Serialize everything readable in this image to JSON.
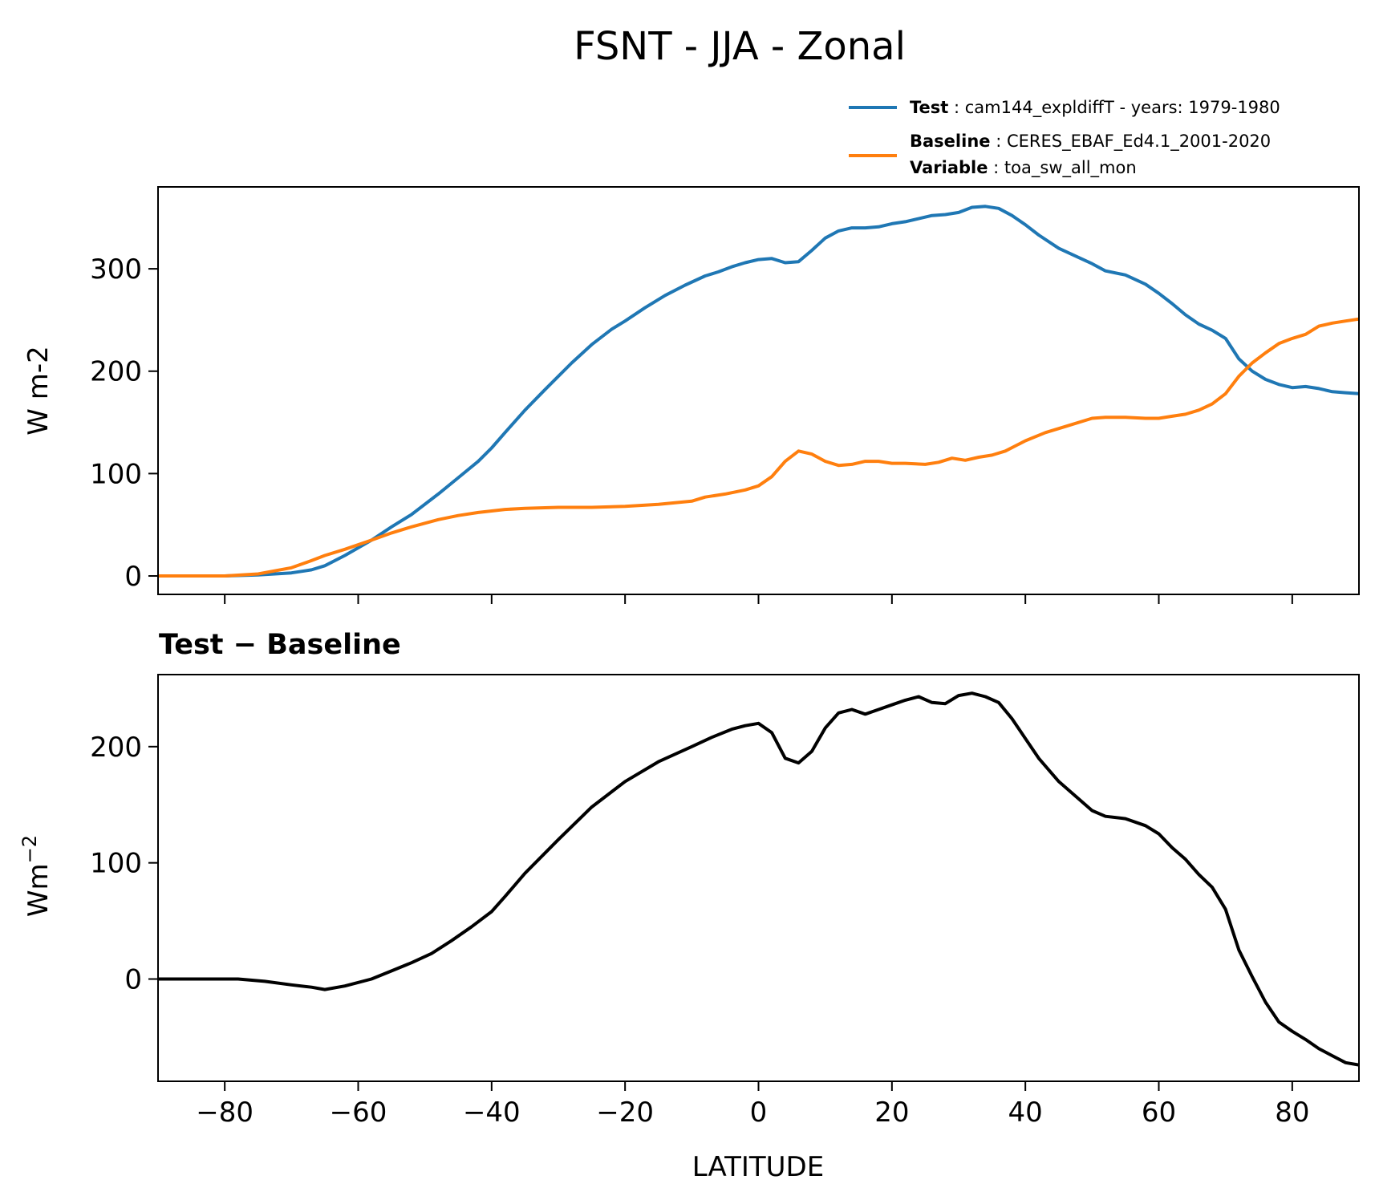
{
  "figure": {
    "title": "FSNT - JJA - Zonal"
  },
  "legend": {
    "test": {
      "key": "Test",
      "sep": " : ",
      "text": "cam144_expldiffT - years: 1979-1980",
      "color": "#1f77b4"
    },
    "baseline": {
      "key": "Baseline",
      "sep": " : ",
      "text": "CERES_EBAF_Ed4.1_2001-2020",
      "color": "#ff7f0e"
    },
    "variable": {
      "key": "Variable",
      "sep": " : ",
      "text": "toa_sw_all_mon"
    }
  },
  "chart_data": [
    {
      "type": "line",
      "panel": "top",
      "title": "",
      "xlabel": "",
      "ylabel": "W m-2",
      "xlim": [
        -90,
        90
      ],
      "ylim": [
        -18,
        380
      ],
      "xticks": [
        -80,
        -60,
        -40,
        -20,
        0,
        20,
        40,
        60,
        80
      ],
      "yticks": [
        0,
        100,
        200,
        300
      ],
      "ytick_labels": [
        "0",
        "100",
        "200",
        "300"
      ],
      "grid": false,
      "legend_position": "above-right",
      "series": [
        {
          "name": "Test",
          "color": "#1f77b4",
          "x": [
            -90,
            -80,
            -75,
            -70,
            -67,
            -65,
            -62,
            -58,
            -55,
            -52,
            -48,
            -45,
            -42,
            -40,
            -38,
            -35,
            -32,
            -28,
            -25,
            -22,
            -20,
            -17,
            -14,
            -11,
            -8,
            -6,
            -4,
            -2,
            0,
            2,
            4,
            6,
            8,
            10,
            12,
            14,
            16,
            18,
            20,
            22,
            24,
            26,
            28,
            30,
            32,
            34,
            36,
            38,
            40,
            42,
            45,
            48,
            50,
            52,
            55,
            58,
            60,
            62,
            64,
            66,
            68,
            70,
            72,
            74,
            76,
            78,
            80,
            82,
            84,
            86,
            88,
            90
          ],
          "y": [
            0,
            0,
            1,
            3,
            6,
            10,
            20,
            35,
            48,
            60,
            80,
            96,
            112,
            125,
            140,
            162,
            182,
            208,
            226,
            241,
            249,
            262,
            274,
            284,
            293,
            297,
            302,
            306,
            309,
            310,
            306,
            307,
            318,
            330,
            337,
            340,
            340,
            341,
            344,
            346,
            349,
            352,
            353,
            355,
            360,
            361,
            359,
            352,
            343,
            333,
            320,
            311,
            305,
            298,
            294,
            285,
            276,
            266,
            255,
            246,
            240,
            232,
            212,
            200,
            192,
            187,
            184,
            185,
            183,
            180,
            179,
            178
          ]
        },
        {
          "name": "Baseline",
          "color": "#ff7f0e",
          "x": [
            -90,
            -80,
            -75,
            -70,
            -67,
            -65,
            -62,
            -58,
            -55,
            -52,
            -48,
            -45,
            -42,
            -38,
            -35,
            -30,
            -25,
            -20,
            -15,
            -10,
            -8,
            -5,
            -2,
            0,
            2,
            4,
            6,
            8,
            10,
            12,
            14,
            16,
            18,
            20,
            22,
            25,
            27,
            29,
            31,
            33,
            35,
            37,
            40,
            43,
            46,
            50,
            52,
            55,
            58,
            60,
            62,
            64,
            66,
            68,
            70,
            72,
            74,
            76,
            78,
            80,
            82,
            84,
            86,
            88,
            90
          ],
          "y": [
            0,
            0,
            2,
            8,
            15,
            20,
            26,
            35,
            42,
            48,
            55,
            59,
            62,
            65,
            66,
            67,
            67,
            68,
            70,
            73,
            77,
            80,
            84,
            88,
            97,
            112,
            122,
            119,
            112,
            108,
            109,
            112,
            112,
            110,
            110,
            109,
            111,
            115,
            113,
            116,
            118,
            122,
            132,
            140,
            146,
            154,
            155,
            155,
            154,
            154,
            156,
            158,
            162,
            168,
            178,
            195,
            208,
            218,
            227,
            232,
            236,
            244,
            247,
            249,
            251
          ]
        }
      ]
    },
    {
      "type": "line",
      "panel": "bottom",
      "title": "Test − Baseline",
      "xlabel": "LATITUDE",
      "ylabel": "Wm",
      "ylabel_superscript": "−2",
      "xlim": [
        -90,
        90
      ],
      "ylim": [
        -88,
        262
      ],
      "xticks": [
        -80,
        -60,
        -40,
        -20,
        0,
        20,
        40,
        60,
        80
      ],
      "xtick_labels": [
        "−80",
        "−60",
        "−40",
        "−20",
        "0",
        "20",
        "40",
        "60",
        "80"
      ],
      "yticks": [
        0,
        100,
        200
      ],
      "ytick_labels": [
        "0",
        "100",
        "200"
      ],
      "grid": false,
      "series": [
        {
          "name": "",
          "color": "#000000",
          "x": [
            -90,
            -80,
            -78,
            -74,
            -70,
            -67,
            -65,
            -62,
            -58,
            -55,
            -52,
            -49,
            -46,
            -43,
            -40,
            -38,
            -35,
            -30,
            -25,
            -20,
            -15,
            -10,
            -7,
            -4,
            -2,
            0,
            2,
            4,
            6,
            8,
            10,
            12,
            14,
            16,
            18,
            20,
            22,
            24,
            26,
            28,
            30,
            32,
            34,
            36,
            38,
            40,
            42,
            45,
            48,
            50,
            52,
            55,
            58,
            60,
            62,
            64,
            66,
            68,
            70,
            72,
            74,
            76,
            78,
            80,
            82,
            84,
            86,
            88,
            90
          ],
          "y": [
            0,
            0,
            0,
            -2,
            -5,
            -7,
            -9,
            -6,
            0,
            7,
            14,
            22,
            33,
            45,
            58,
            71,
            91,
            120,
            148,
            170,
            187,
            200,
            208,
            215,
            218,
            220,
            212,
            190,
            186,
            196,
            216,
            229,
            232,
            228,
            232,
            236,
            240,
            243,
            238,
            237,
            244,
            246,
            243,
            238,
            224,
            207,
            190,
            170,
            155,
            145,
            140,
            138,
            132,
            125,
            113,
            103,
            90,
            79,
            60,
            25,
            2,
            -20,
            -37,
            -45,
            -52,
            -60,
            -66,
            -72,
            -74
          ]
        }
      ]
    }
  ]
}
